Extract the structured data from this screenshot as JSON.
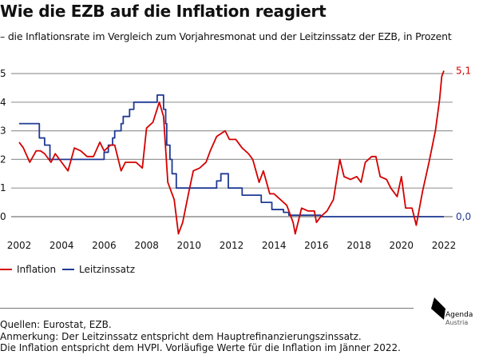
{
  "chart_data": {
    "type": "line",
    "title": "Wie die EZB auf die Inflation reagiert",
    "subtitle": "– die Inflationsrate im Vergleich zum Vorjahresmonat und der Leitzinssatz der EZB, in Prozent",
    "xlim": [
      2002,
      2022
    ],
    "ylim": [
      -0.8,
      5
    ],
    "xticks": [
      "2002",
      "2004",
      "2006",
      "2008",
      "2010",
      "2012",
      "2014",
      "2016",
      "2018",
      "2020",
      "2022"
    ],
    "yticks": [
      "0",
      "1",
      "2",
      "3",
      "4",
      "5"
    ],
    "grid": true,
    "legend_position": "bottom-left",
    "series": [
      {
        "name": "Inflation",
        "color": "#d40000",
        "end_label": "5,1",
        "x": [
          2002.0,
          2002.2,
          2002.5,
          2002.8,
          2003.0,
          2003.2,
          2003.5,
          2003.7,
          2004.0,
          2004.3,
          2004.6,
          2004.9,
          2005.2,
          2005.5,
          2005.8,
          2006.0,
          2006.3,
          2006.5,
          2006.8,
          2007.0,
          2007.5,
          2007.8,
          2008.0,
          2008.3,
          2008.6,
          2008.8,
          2009.0,
          2009.3,
          2009.5,
          2009.7,
          2010.0,
          2010.2,
          2010.5,
          2010.8,
          2011.0,
          2011.3,
          2011.7,
          2011.9,
          2012.2,
          2012.5,
          2012.8,
          2013.0,
          2013.3,
          2013.5,
          2013.8,
          2014.0,
          2014.3,
          2014.6,
          2014.9,
          2015.0,
          2015.3,
          2015.6,
          2015.9,
          2016.0,
          2016.2,
          2016.5,
          2016.8,
          2017.1,
          2017.3,
          2017.6,
          2017.9,
          2018.1,
          2018.3,
          2018.6,
          2018.8,
          2019.0,
          2019.3,
          2019.5,
          2019.8,
          2020.0,
          2020.2,
          2020.5,
          2020.7,
          2021.0,
          2021.3,
          2021.6,
          2021.8,
          2021.9,
          2022.0
        ],
        "y": [
          2.6,
          2.4,
          1.9,
          2.3,
          2.3,
          2.2,
          1.9,
          2.2,
          1.9,
          1.6,
          2.4,
          2.3,
          2.1,
          2.1,
          2.6,
          2.3,
          2.5,
          2.5,
          1.6,
          1.9,
          1.9,
          1.7,
          3.1,
          3.3,
          4.0,
          3.5,
          1.2,
          0.6,
          -0.6,
          -0.2,
          0.9,
          1.6,
          1.7,
          1.9,
          2.3,
          2.8,
          3.0,
          2.7,
          2.7,
          2.4,
          2.2,
          2.0,
          1.2,
          1.6,
          0.8,
          0.8,
          0.6,
          0.4,
          -0.2,
          -0.6,
          0.3,
          0.2,
          0.2,
          -0.2,
          0.0,
          0.2,
          0.6,
          2.0,
          1.4,
          1.3,
          1.4,
          1.2,
          1.9,
          2.1,
          2.1,
          1.4,
          1.3,
          1.0,
          0.7,
          1.4,
          0.3,
          0.3,
          -0.3,
          0.9,
          1.9,
          3.0,
          4.1,
          4.9,
          5.1
        ]
      },
      {
        "name": "Leitzinssatz",
        "color": "#1f3a93",
        "end_label": "0,0",
        "step": true,
        "x": [
          2002.0,
          2002.95,
          2003.2,
          2003.45,
          2006.0,
          2006.2,
          2006.4,
          2006.5,
          2006.8,
          2006.9,
          2007.2,
          2007.4,
          2008.5,
          2008.8,
          2008.9,
          2008.95,
          2009.1,
          2009.2,
          2009.4,
          2011.3,
          2011.5,
          2011.85,
          2012.5,
          2013.4,
          2013.9,
          2014.45,
          2014.7,
          2016.2,
          2022.0
        ],
        "y": [
          3.25,
          2.75,
          2.5,
          2.0,
          2.25,
          2.5,
          2.75,
          3.0,
          3.25,
          3.5,
          3.75,
          4.0,
          4.25,
          3.75,
          3.25,
          2.5,
          2.0,
          1.5,
          1.0,
          1.25,
          1.5,
          1.0,
          0.75,
          0.5,
          0.25,
          0.15,
          0.05,
          0.0,
          0.0
        ]
      }
    ]
  },
  "footer": {
    "sources": "Quellen: Eurostat, EZB.",
    "note1": "Anmerkung: Der Leitzinssatz entspricht dem Hauptrefinanzierungszinssatz.",
    "note2": "Die Inflation entspricht dem HVPI. Vorläufige Werte für die Inflation im Jänner 2022."
  },
  "logo": {
    "line1": "Agenda",
    "line2": "Austria"
  }
}
